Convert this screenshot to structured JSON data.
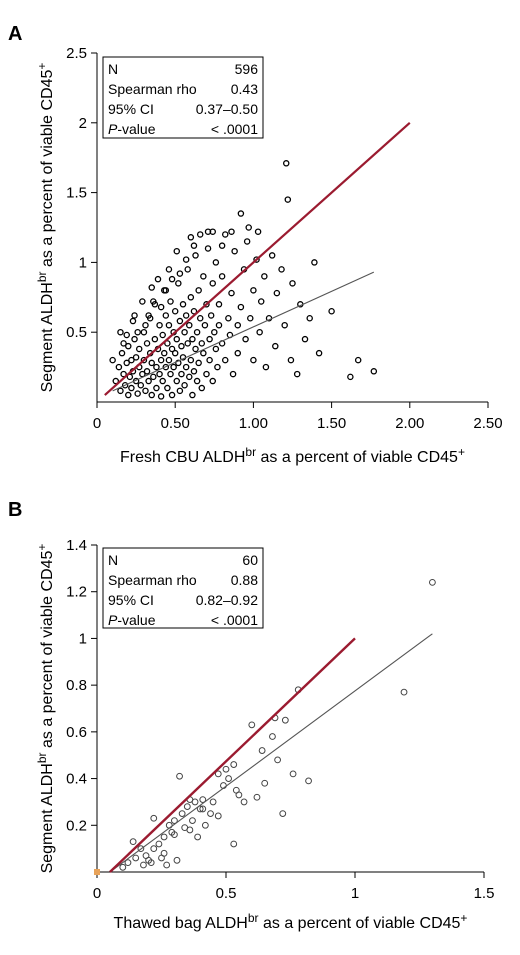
{
  "chart_data": [
    {
      "type": "scatter",
      "panel_label": "A",
      "xlabel": {
        "main": "Fresh CBU ALDH",
        "sup": "br",
        "rest": " as a percent of viable CD45",
        "sup2": "+"
      },
      "ylabel": {
        "main": "Segment ALDH",
        "sup": "br",
        "rest": " as a percent of viable CD45",
        "sup2": "+"
      },
      "xlim": [
        0,
        2.5
      ],
      "ylim": [
        0,
        2.5
      ],
      "xticks": [
        "0",
        "0.50",
        "1.00",
        "1.50",
        "2.00",
        "2.50"
      ],
      "xtick_values": [
        0,
        0.5,
        1.0,
        1.5,
        2.0,
        2.5
      ],
      "yticks": [
        "0.5",
        "1",
        "1.5",
        "2",
        "2.5"
      ],
      "ytick_values": [
        0.5,
        1,
        1.5,
        2,
        2.5
      ],
      "stats": [
        {
          "label": "N",
          "value": "596"
        },
        {
          "label": "Spearman rho",
          "value": "0.43"
        },
        {
          "label": "95% CI",
          "value": "0.37–0.50"
        },
        {
          "label": "P-value",
          "value": "< .0001"
        }
      ],
      "identity_line": {
        "x": [
          0.05,
          2.0
        ],
        "y": [
          0.05,
          2.0
        ],
        "color": "#9b1b30"
      },
      "fit_line": {
        "x": [
          0.1,
          1.77
        ],
        "y": [
          0.08,
          0.93
        ],
        "color": "#555555"
      },
      "points": [
        [
          0.1,
          0.3
        ],
        [
          0.12,
          0.15
        ],
        [
          0.14,
          0.25
        ],
        [
          0.15,
          0.08
        ],
        [
          0.16,
          0.35
        ],
        [
          0.17,
          0.2
        ],
        [
          0.18,
          0.12
        ],
        [
          0.19,
          0.28
        ],
        [
          0.2,
          0.05
        ],
        [
          0.2,
          0.4
        ],
        [
          0.21,
          0.18
        ],
        [
          0.22,
          0.3
        ],
        [
          0.22,
          0.1
        ],
        [
          0.23,
          0.22
        ],
        [
          0.24,
          0.45
        ],
        [
          0.25,
          0.15
        ],
        [
          0.25,
          0.32
        ],
        [
          0.26,
          0.06
        ],
        [
          0.27,
          0.25
        ],
        [
          0.27,
          0.38
        ],
        [
          0.28,
          0.12
        ],
        [
          0.29,
          0.2
        ],
        [
          0.3,
          0.5
        ],
        [
          0.3,
          0.3
        ],
        [
          0.31,
          0.08
        ],
        [
          0.32,
          0.22
        ],
        [
          0.32,
          0.42
        ],
        [
          0.33,
          0.15
        ],
        [
          0.34,
          0.35
        ],
        [
          0.34,
          0.6
        ],
        [
          0.35,
          0.05
        ],
        [
          0.35,
          0.28
        ],
        [
          0.36,
          0.18
        ],
        [
          0.37,
          0.45
        ],
        [
          0.37,
          0.7
        ],
        [
          0.38,
          0.25
        ],
        [
          0.38,
          0.1
        ],
        [
          0.39,
          0.38
        ],
        [
          0.4,
          0.55
        ],
        [
          0.4,
          0.2
        ],
        [
          0.41,
          0.3
        ],
        [
          0.41,
          0.04
        ],
        [
          0.42,
          0.48
        ],
        [
          0.42,
          0.15
        ],
        [
          0.43,
          0.8
        ],
        [
          0.43,
          0.35
        ],
        [
          0.44,
          0.25
        ],
        [
          0.44,
          0.62
        ],
        [
          0.45,
          0.1
        ],
        [
          0.45,
          0.42
        ],
        [
          0.46,
          0.3
        ],
        [
          0.46,
          0.55
        ],
        [
          0.47,
          0.2
        ],
        [
          0.47,
          0.72
        ],
        [
          0.48,
          0.38
        ],
        [
          0.48,
          0.05
        ],
        [
          0.49,
          0.5
        ],
        [
          0.49,
          0.25
        ],
        [
          0.5,
          0.35
        ],
        [
          0.5,
          0.65
        ],
        [
          0.51,
          0.15
        ],
        [
          0.51,
          0.45
        ],
        [
          0.52,
          0.85
        ],
        [
          0.52,
          0.28
        ],
        [
          0.53,
          0.58
        ],
        [
          0.53,
          0.08
        ],
        [
          0.54,
          0.4
        ],
        [
          0.54,
          0.2
        ],
        [
          0.55,
          0.7
        ],
        [
          0.55,
          0.32
        ],
        [
          0.56,
          0.5
        ],
        [
          0.56,
          0.12
        ],
        [
          0.57,
          0.62
        ],
        [
          0.57,
          0.25
        ],
        [
          0.58,
          0.95
        ],
        [
          0.58,
          0.42
        ],
        [
          0.59,
          0.18
        ],
        [
          0.59,
          0.55
        ],
        [
          0.6,
          0.3
        ],
        [
          0.6,
          0.75
        ],
        [
          0.61,
          0.45
        ],
        [
          0.61,
          0.05
        ],
        [
          0.62,
          0.65
        ],
        [
          0.62,
          0.22
        ],
        [
          0.63,
          1.05
        ],
        [
          0.63,
          0.38
        ],
        [
          0.64,
          0.5
        ],
        [
          0.64,
          0.15
        ],
        [
          0.65,
          0.8
        ],
        [
          0.65,
          0.28
        ],
        [
          0.66,
          0.6
        ],
        [
          0.67,
          0.42
        ],
        [
          0.67,
          0.1
        ],
        [
          0.68,
          0.9
        ],
        [
          0.68,
          0.35
        ],
        [
          0.69,
          0.55
        ],
        [
          0.7,
          0.2
        ],
        [
          0.7,
          0.7
        ],
        [
          0.71,
          1.1
        ],
        [
          0.72,
          0.45
        ],
        [
          0.72,
          0.3
        ],
        [
          0.73,
          0.62
        ],
        [
          0.74,
          0.15
        ],
        [
          0.74,
          0.85
        ],
        [
          0.75,
          0.5
        ],
        [
          0.76,
          0.38
        ],
        [
          0.76,
          1.0
        ],
        [
          0.77,
          0.25
        ],
        [
          0.78,
          0.7
        ],
        [
          0.78,
          0.55
        ],
        [
          0.8,
          0.42
        ],
        [
          0.8,
          0.9
        ],
        [
          0.82,
          0.3
        ],
        [
          0.82,
          1.2
        ],
        [
          0.84,
          0.6
        ],
        [
          0.85,
          0.48
        ],
        [
          0.86,
          0.78
        ],
        [
          0.87,
          0.2
        ],
        [
          0.88,
          1.08
        ],
        [
          0.9,
          0.55
        ],
        [
          0.9,
          0.35
        ],
        [
          0.92,
          0.68
        ],
        [
          0.94,
          0.95
        ],
        [
          0.95,
          0.45
        ],
        [
          0.96,
          1.15
        ],
        [
          0.98,
          0.6
        ],
        [
          1.0,
          0.8
        ],
        [
          1.0,
          0.3
        ],
        [
          1.02,
          1.02
        ],
        [
          1.04,
          0.5
        ],
        [
          1.05,
          0.72
        ],
        [
          1.07,
          0.9
        ],
        [
          1.08,
          0.25
        ],
        [
          1.1,
          0.6
        ],
        [
          1.12,
          1.05
        ],
        [
          1.14,
          0.4
        ],
        [
          1.15,
          0.78
        ],
        [
          1.18,
          0.95
        ],
        [
          1.2,
          0.55
        ],
        [
          1.21,
          1.71
        ],
        [
          1.22,
          1.45
        ],
        [
          1.24,
          0.3
        ],
        [
          1.25,
          0.85
        ],
        [
          1.28,
          0.2
        ],
        [
          1.3,
          0.7
        ],
        [
          1.33,
          0.45
        ],
        [
          1.36,
          0.6
        ],
        [
          1.39,
          1.0
        ],
        [
          1.42,
          0.35
        ],
        [
          1.5,
          0.65
        ],
        [
          1.62,
          0.18
        ],
        [
          1.67,
          0.3
        ],
        [
          1.77,
          0.22
        ],
        [
          0.26,
          0.5
        ],
        [
          0.33,
          0.62
        ],
        [
          0.36,
          0.72
        ],
        [
          0.41,
          0.68
        ],
        [
          0.44,
          0.8
        ],
        [
          0.48,
          0.88
        ],
        [
          0.53,
          0.92
        ],
        [
          0.57,
          1.02
        ],
        [
          0.62,
          1.12
        ],
        [
          0.66,
          1.2
        ],
        [
          0.71,
          1.22
        ],
        [
          0.46,
          0.95
        ],
        [
          0.39,
          0.88
        ],
        [
          0.31,
          0.55
        ],
        [
          0.24,
          0.62
        ],
        [
          0.29,
          0.72
        ],
        [
          0.35,
          0.82
        ],
        [
          0.51,
          1.08
        ],
        [
          0.6,
          1.18
        ],
        [
          0.74,
          1.22
        ],
        [
          0.8,
          1.12
        ],
        [
          0.86,
          1.22
        ],
        [
          0.92,
          1.35
        ],
        [
          0.97,
          1.25
        ],
        [
          1.03,
          1.22
        ],
        [
          0.15,
          0.5
        ],
        [
          0.19,
          0.48
        ],
        [
          0.23,
          0.58
        ],
        [
          0.17,
          0.42
        ]
      ]
    },
    {
      "type": "scatter",
      "panel_label": "B",
      "xlabel": {
        "main": "Thawed bag ALDH",
        "sup": "br",
        "rest": " as a percent of viable CD45",
        "sup2": "+"
      },
      "ylabel": {
        "main": "Segment ALDH",
        "sup": "br",
        "rest": " as a percent of viable CD45",
        "sup2": "+"
      },
      "xlim": [
        0,
        1.5
      ],
      "ylim": [
        0,
        1.4
      ],
      "xticks": [
        "0",
        "0.5",
        "1",
        "1.5"
      ],
      "xtick_values": [
        0,
        0.5,
        1,
        1.5
      ],
      "yticks": [
        "0.2",
        "0.4",
        "0.6",
        "0.8",
        "1",
        "1.2",
        "1.4"
      ],
      "ytick_values": [
        0.2,
        0.4,
        0.6,
        0.8,
        1,
        1.2,
        1.4
      ],
      "stats": [
        {
          "label": "N",
          "value": "60"
        },
        {
          "label": "Spearman rho",
          "value": "0.88"
        },
        {
          "label": "95% CI",
          "value": "0.82–0.92"
        },
        {
          "label": "P-value",
          "value": "< .0001"
        }
      ],
      "identity_line": {
        "x": [
          0.05,
          1.0
        ],
        "y": [
          0.0,
          1.0
        ],
        "color": "#9b1b30"
      },
      "fit_line": {
        "x": [
          0.05,
          1.3
        ],
        "y": [
          0.0,
          1.02
        ],
        "color": "#555555"
      },
      "points": [
        [
          0.1,
          0.02
        ],
        [
          0.12,
          0.04
        ],
        [
          0.14,
          0.13
        ],
        [
          0.15,
          0.06
        ],
        [
          0.17,
          0.1
        ],
        [
          0.19,
          0.07
        ],
        [
          0.2,
          0.05
        ],
        [
          0.21,
          0.04
        ],
        [
          0.22,
          0.23
        ],
        [
          0.22,
          0.1
        ],
        [
          0.24,
          0.12
        ],
        [
          0.25,
          0.06
        ],
        [
          0.26,
          0.15
        ],
        [
          0.27,
          0.03
        ],
        [
          0.28,
          0.2
        ],
        [
          0.29,
          0.17
        ],
        [
          0.3,
          0.22
        ],
        [
          0.31,
          0.05
        ],
        [
          0.32,
          0.41
        ],
        [
          0.33,
          0.25
        ],
        [
          0.34,
          0.19
        ],
        [
          0.35,
          0.28
        ],
        [
          0.36,
          0.31
        ],
        [
          0.37,
          0.22
        ],
        [
          0.38,
          0.3
        ],
        [
          0.39,
          0.15
        ],
        [
          0.4,
          0.27
        ],
        [
          0.41,
          0.31
        ],
        [
          0.42,
          0.2
        ],
        [
          0.44,
          0.25
        ],
        [
          0.47,
          0.24
        ],
        [
          0.47,
          0.42
        ],
        [
          0.49,
          0.37
        ],
        [
          0.5,
          0.44
        ],
        [
          0.51,
          0.4
        ],
        [
          0.53,
          0.46
        ],
        [
          0.53,
          0.12
        ],
        [
          0.54,
          0.35
        ],
        [
          0.55,
          0.33
        ],
        [
          0.6,
          0.63
        ],
        [
          0.62,
          0.32
        ],
        [
          0.65,
          0.38
        ],
        [
          0.68,
          0.58
        ],
        [
          0.69,
          0.66
        ],
        [
          0.7,
          0.48
        ],
        [
          0.72,
          0.25
        ],
        [
          0.73,
          0.65
        ],
        [
          0.76,
          0.42
        ],
        [
          0.78,
          0.78
        ],
        [
          0.82,
          0.39
        ],
        [
          1.19,
          0.77
        ],
        [
          1.3,
          1.24
        ],
        [
          0.45,
          0.3
        ],
        [
          0.36,
          0.18
        ],
        [
          0.3,
          0.16
        ],
        [
          0.26,
          0.08
        ],
        [
          0.18,
          0.03
        ],
        [
          0.41,
          0.27
        ],
        [
          0.57,
          0.3
        ],
        [
          0.64,
          0.52
        ]
      ]
    }
  ]
}
